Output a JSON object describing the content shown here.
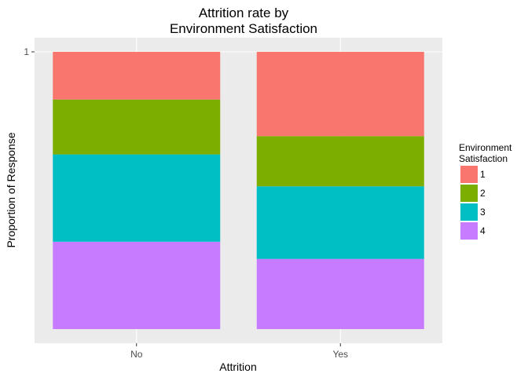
{
  "chart_data": {
    "type": "bar",
    "stacked": true,
    "normalized": true,
    "title": [
      "Attrition rate by",
      "Environment Satisfaction"
    ],
    "xlabel": "Attrition",
    "ylabel": "Proportion of Response",
    "categories": [
      "No",
      "Yes"
    ],
    "ylim": [
      0,
      1
    ],
    "yticks": [
      1
    ],
    "yticklabels": [
      "1"
    ],
    "legend": {
      "title": [
        "Environment",
        "Satisfaction"
      ],
      "position": "right"
    },
    "series": [
      {
        "name": "1",
        "color": "#F8766D",
        "values": [
          0.172,
          0.304
        ]
      },
      {
        "name": "2",
        "color": "#7CAE00",
        "values": [
          0.198,
          0.181
        ]
      },
      {
        "name": "3",
        "color": "#00BFC4",
        "values": [
          0.315,
          0.262
        ]
      },
      {
        "name": "4",
        "color": "#C77CFF",
        "values": [
          0.315,
          0.253
        ]
      }
    ]
  }
}
